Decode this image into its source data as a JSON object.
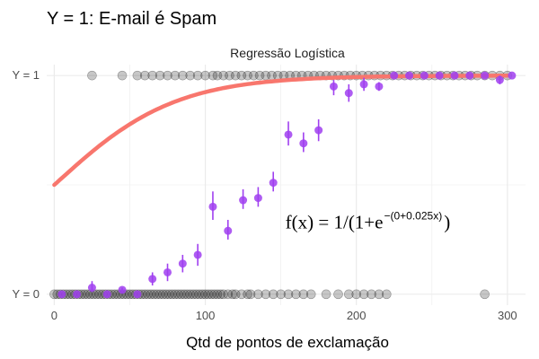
{
  "chart_data": {
    "type": "scatter",
    "title": "Y = 1: E-mail é Spam",
    "subtitle": "Regressão Logística",
    "xlabel": "Qtd de pontos de exclamação",
    "ylabel": "",
    "xlim": [
      -5,
      312
    ],
    "ylim": [
      -0.05,
      1.05
    ],
    "x_ticks": [
      0,
      100,
      200,
      300
    ],
    "x_tick_labels": [
      "0",
      "100",
      "200",
      "300"
    ],
    "y_ticks": [
      0,
      1
    ],
    "y_tick_labels": [
      "Y = 0",
      "Y = 1"
    ],
    "grid": true,
    "annotation": {
      "main": "f(x) = 1/(1+e",
      "exponent": "−(0+0.025x)",
      "close": ")",
      "x": 153,
      "y": 0.3
    },
    "logistic_curve": {
      "intercept": 0,
      "slope": 0.025,
      "color": "#f8766d"
    },
    "series": [
      {
        "type": "observations",
        "color": "#000000",
        "y0_x": [
          0,
          2,
          4,
          6,
          8,
          10,
          12,
          14,
          16,
          18,
          20,
          22,
          24,
          26,
          28,
          30,
          32,
          34,
          36,
          38,
          40,
          42,
          44,
          46,
          48,
          50,
          52,
          54,
          56,
          58,
          60,
          62,
          64,
          66,
          68,
          70,
          72,
          74,
          76,
          78,
          80,
          82,
          84,
          86,
          88,
          90,
          92,
          94,
          96,
          98,
          100,
          102,
          104,
          106,
          108,
          110,
          112,
          115,
          118,
          120,
          124,
          128,
          130,
          135,
          140,
          145,
          150,
          155,
          160,
          165,
          170,
          180,
          188,
          195,
          200,
          205,
          210,
          215,
          220,
          285
        ],
        "y1_x": [
          25,
          45,
          55,
          60,
          65,
          70,
          75,
          80,
          85,
          90,
          95,
          100,
          105,
          108,
          112,
          116,
          120,
          124,
          128,
          132,
          136,
          140,
          144,
          148,
          152,
          156,
          160,
          164,
          168,
          172,
          176,
          180,
          184,
          188,
          192,
          196,
          200,
          204,
          208,
          212,
          216,
          220,
          224,
          228,
          232,
          236,
          240,
          244,
          248,
          252,
          256,
          260,
          264,
          268,
          272,
          276,
          280,
          285,
          290,
          295,
          300
        ]
      },
      {
        "type": "binned_proportion",
        "color": "#a040f0",
        "x": [
          5,
          15,
          25,
          35,
          45,
          55,
          65,
          75,
          85,
          95,
          105,
          115,
          125,
          135,
          145,
          155,
          165,
          175,
          185,
          195,
          205,
          215,
          225,
          235,
          245,
          255,
          265,
          275,
          285,
          295,
          303
        ],
        "y": [
          0,
          0,
          0.03,
          0,
          0.02,
          0,
          0.07,
          0.1,
          0.14,
          0.18,
          0.4,
          0.29,
          0.43,
          0.44,
          0.51,
          0.73,
          0.69,
          0.75,
          0.95,
          0.92,
          0.96,
          0.95,
          1.0,
          1.0,
          1.0,
          1.0,
          1.0,
          1.0,
          1.0,
          0.98,
          1.0
        ],
        "lower": [
          0,
          0,
          0.01,
          0,
          0.01,
          0,
          0.04,
          0.06,
          0.1,
          0.13,
          0.34,
          0.25,
          0.39,
          0.4,
          0.47,
          0.68,
          0.65,
          0.7,
          0.91,
          0.88,
          0.93,
          0.93,
          1.0,
          1.0,
          1.0,
          1.0,
          1.0,
          1.0,
          1.0,
          0.96,
          1.0
        ],
        "upper": [
          0,
          0,
          0.06,
          0,
          0.03,
          0,
          0.1,
          0.14,
          0.18,
          0.23,
          0.47,
          0.34,
          0.48,
          0.49,
          0.56,
          0.79,
          0.74,
          0.8,
          0.98,
          0.96,
          0.99,
          0.97,
          1.0,
          1.0,
          1.0,
          1.0,
          1.0,
          1.0,
          1.0,
          1.0,
          1.0
        ]
      }
    ]
  }
}
